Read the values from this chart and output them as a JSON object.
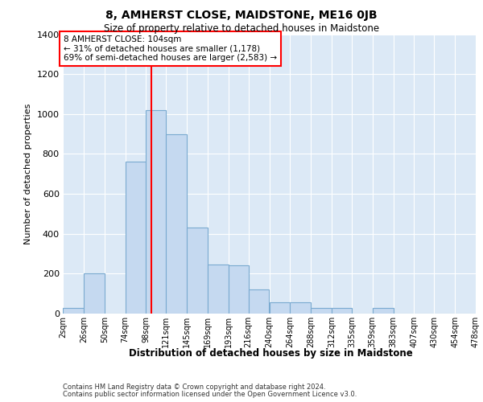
{
  "title1": "8, AMHERST CLOSE, MAIDSTONE, ME16 0JB",
  "title2": "Size of property relative to detached houses in Maidstone",
  "xlabel": "Distribution of detached houses by size in Maidstone",
  "ylabel": "Number of detached properties",
  "annotation_line1": "8 AMHERST CLOSE: 104sqm",
  "annotation_line2": "← 31% of detached houses are smaller (1,178)",
  "annotation_line3": "69% of semi-detached houses are larger (2,583) →",
  "footer1": "Contains HM Land Registry data © Crown copyright and database right 2024.",
  "footer2": "Contains public sector information licensed under the Open Government Licence v3.0.",
  "bar_color": "#c5d9f0",
  "bar_edge_color": "#7aaad0",
  "background_color": "#dce9f6",
  "red_line_x": 104,
  "bin_edges": [
    2,
    26,
    50,
    74,
    98,
    121,
    145,
    169,
    193,
    216,
    240,
    264,
    288,
    312,
    335,
    359,
    383,
    407,
    430,
    454,
    478
  ],
  "counts": [
    30,
    200,
    0,
    760,
    1020,
    900,
    430,
    245,
    240,
    120,
    55,
    55,
    30,
    30,
    0,
    30,
    0,
    0,
    0,
    0
  ],
  "ylim": [
    0,
    1400
  ],
  "yticks": [
    0,
    200,
    400,
    600,
    800,
    1000,
    1200,
    1400
  ],
  "tick_labels": [
    "2sqm",
    "26sqm",
    "50sqm",
    "74sqm",
    "98sqm",
    "121sqm",
    "145sqm",
    "169sqm",
    "193sqm",
    "216sqm",
    "240sqm",
    "264sqm",
    "288sqm",
    "312sqm",
    "335sqm",
    "359sqm",
    "383sqm",
    "407sqm",
    "430sqm",
    "454sqm",
    "478sqm"
  ]
}
